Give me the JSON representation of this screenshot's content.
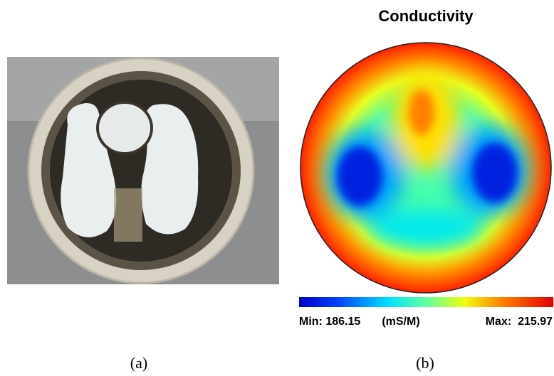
{
  "figure": {
    "panel_b": {
      "title": "Conductivity",
      "min_label": "Min: 186.15",
      "unit": "(mS/M)",
      "max_label": "Max:  215.97"
    },
    "captions": [
      "(a)",
      "(b)"
    ]
  }
}
